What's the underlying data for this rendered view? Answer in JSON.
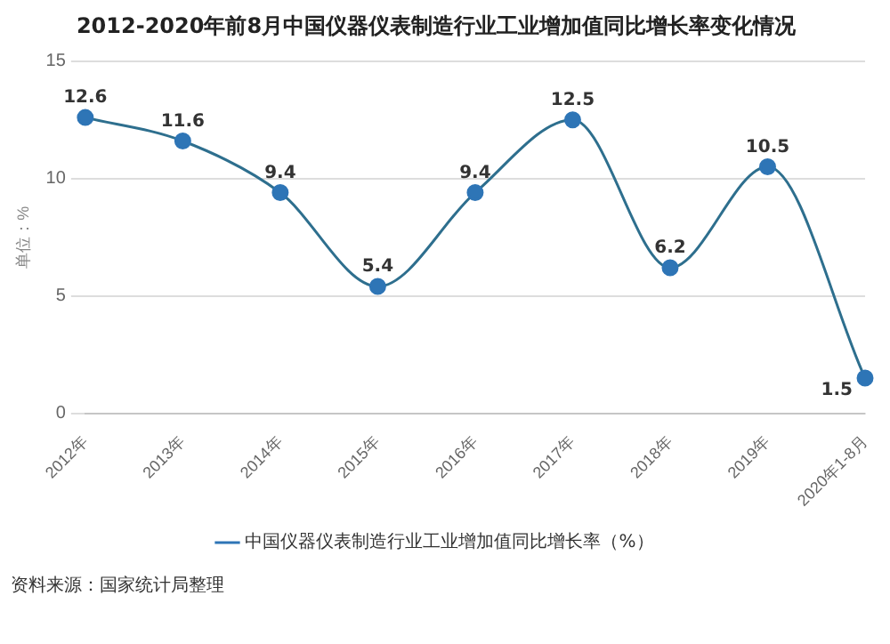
{
  "chart_data": {
    "type": "line",
    "title": "2012-2020年前8月中国仪器仪表制造行业工业增加值同比增长率变化情况",
    "ylabel": "单位：%",
    "categories": [
      "2012年",
      "2013年",
      "2014年",
      "2015年",
      "2016年",
      "2017年",
      "2018年",
      "2019年",
      "2020年1-8月"
    ],
    "series": [
      {
        "name": "中国仪器仪表制造行业工业增加值同比增长率（%）",
        "color": "#2e6f8e",
        "values": [
          12.6,
          11.6,
          9.4,
          5.4,
          9.4,
          12.5,
          6.2,
          10.5,
          1.5
        ]
      }
    ],
    "ylim": [
      0,
      15
    ],
    "yticks": [
      0,
      5,
      10,
      15
    ],
    "grid": "y",
    "legend": "bottom",
    "marker": "circle",
    "data_labels": true,
    "annotations": [
      "资料来源：国家统计局整理"
    ]
  }
}
